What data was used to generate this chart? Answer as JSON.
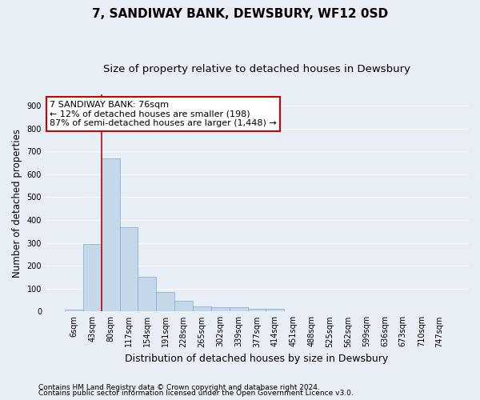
{
  "title": "7, SANDIWAY BANK, DEWSBURY, WF12 0SD",
  "subtitle": "Size of property relative to detached houses in Dewsbury",
  "xlabel": "Distribution of detached houses by size in Dewsbury",
  "ylabel": "Number of detached properties",
  "bar_categories": [
    "6sqm",
    "43sqm",
    "80sqm",
    "117sqm",
    "154sqm",
    "191sqm",
    "228sqm",
    "265sqm",
    "302sqm",
    "339sqm",
    "377sqm",
    "414sqm",
    "451sqm",
    "488sqm",
    "525sqm",
    "562sqm",
    "599sqm",
    "636sqm",
    "673sqm",
    "710sqm",
    "747sqm"
  ],
  "bar_values": [
    8,
    295,
    670,
    370,
    150,
    85,
    45,
    22,
    18,
    18,
    12,
    12,
    0,
    0,
    0,
    0,
    0,
    0,
    0,
    0,
    0
  ],
  "bar_color": "#c5d8ea",
  "bar_edge_color": "#7baac8",
  "background_color": "#e8eef5",
  "grid_color": "#ffffff",
  "annotation_text": "7 SANDIWAY BANK: 76sqm\n← 12% of detached houses are smaller (198)\n87% of semi-detached houses are larger (1,448) →",
  "annotation_box_facecolor": "#ffffff",
  "annotation_box_edgecolor": "#cc0000",
  "vline_color": "#cc0000",
  "vline_x_index": 2,
  "ylim": [
    0,
    950
  ],
  "yticks": [
    0,
    100,
    200,
    300,
    400,
    500,
    600,
    700,
    800,
    900
  ],
  "footnote1": "Contains HM Land Registry data © Crown copyright and database right 2024.",
  "footnote2": "Contains public sector information licensed under the Open Government Licence v3.0.",
  "title_fontsize": 11,
  "subtitle_fontsize": 9.5,
  "xlabel_fontsize": 9,
  "ylabel_fontsize": 8.5,
  "tick_fontsize": 7,
  "annotation_fontsize": 8,
  "footnote_fontsize": 6.5
}
